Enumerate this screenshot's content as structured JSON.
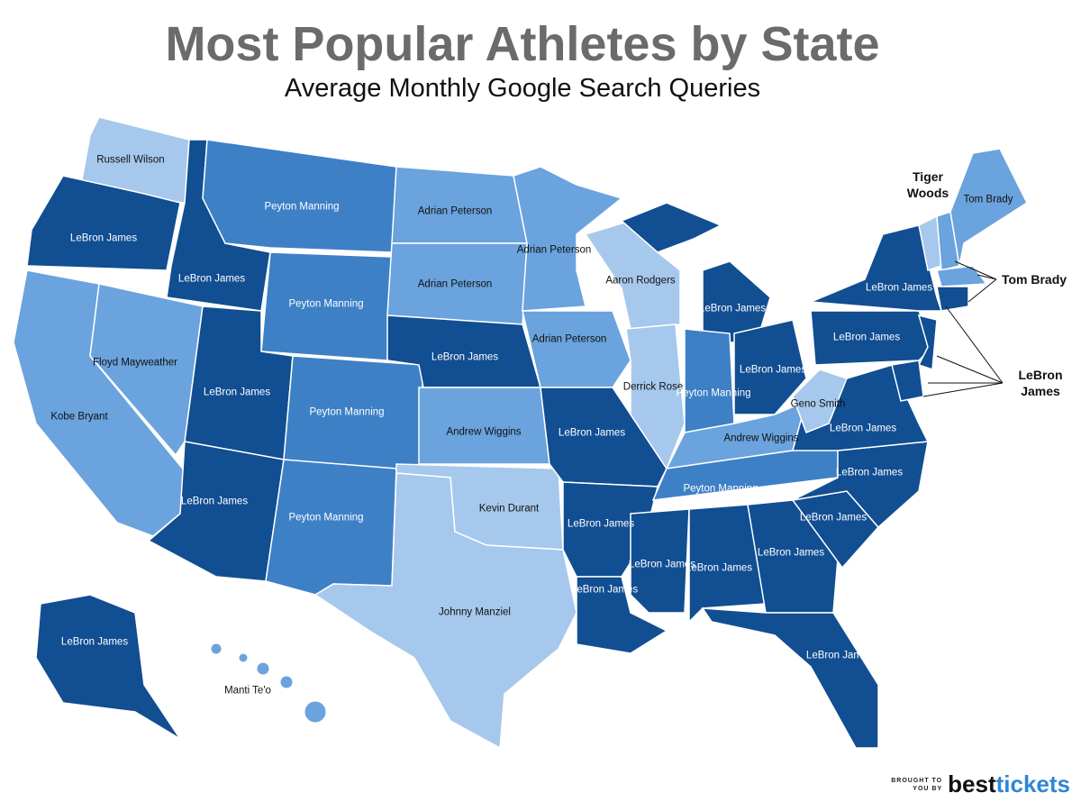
{
  "title": "Most Popular Athletes by State",
  "subtitle": "Average Monthly Google Search Queries",
  "states": [
    {
      "label": "Russell Wilson",
      "color": "#a6c8ec"
    },
    {
      "label": "LeBron James",
      "color": "#114e92"
    },
    {
      "label": "Kobe Bryant",
      "color": "#6aa3dd"
    },
    {
      "label": "Floyd Mayweather",
      "color": "#6aa3dd"
    },
    {
      "label": "LeBron James",
      "color": "#114e92"
    },
    {
      "label": "Peyton Manning",
      "color": "#3d80c6"
    },
    {
      "label": "Peyton Manning",
      "color": "#3d80c6"
    },
    {
      "label": "LeBron James",
      "color": "#114e92"
    },
    {
      "label": "LeBron James",
      "color": "#114e92"
    },
    {
      "label": "Peyton Manning",
      "color": "#3d80c6"
    },
    {
      "label": "Peyton Manning",
      "color": "#3d80c6"
    },
    {
      "label": "Adrian Peterson",
      "color": "#6aa3dd"
    },
    {
      "label": "Adrian Peterson",
      "color": "#6aa3dd"
    },
    {
      "label": "LeBron James",
      "color": "#114e92"
    },
    {
      "label": "Andrew Wiggins",
      "color": "#6aa3dd"
    },
    {
      "label": "Kevin Durant",
      "color": "#a6c8ec"
    },
    {
      "label": "Johnny Manziel",
      "color": "#a6c8ec"
    },
    {
      "label": "Adrian Peterson",
      "color": "#6aa3dd"
    },
    {
      "label": "Adrian Peterson",
      "color": "#6aa3dd"
    },
    {
      "label": "LeBron James",
      "color": "#114e92"
    },
    {
      "label": "LeBron James",
      "color": "#114e92"
    },
    {
      "label": "LeBron James",
      "color": "#114e92"
    },
    {
      "label": "Aaron Rodgers",
      "color": "#a6c8ec"
    },
    {
      "label": "Derrick Rose",
      "color": "#a6c8ec"
    },
    {
      "label": "LeBron James",
      "color": "#114e92"
    },
    {
      "color": "#114e92"
    },
    {
      "label": "Peyton Manning",
      "color": "#3d80c6"
    },
    {
      "label": "LeBron James",
      "color": "#114e92"
    },
    {
      "label": "Andrew Wiggins",
      "color": "#6aa3dd"
    },
    {
      "label": "Peyton Manning",
      "color": "#3d80c6"
    },
    {
      "label": "LeBron James",
      "color": "#114e92"
    },
    {
      "label": "LeBron James",
      "color": "#114e92"
    },
    {
      "label": "LeBron James",
      "color": "#114e92"
    },
    {
      "label": "LeBron James",
      "color": "#114e92"
    },
    {
      "label": "LeBron James",
      "color": "#114e92"
    },
    {
      "label": "LeBron James",
      "color": "#114e92"
    },
    {
      "label": "LeBron James",
      "color": "#114e92"
    },
    {
      "label": "Geno Smith",
      "color": "#a6c8ec"
    },
    {
      "label": "LeBron James",
      "color": "#114e92"
    },
    {
      "label": "LeBron James",
      "color": "#114e92"
    },
    {
      "color": "#114e92"
    },
    {
      "color": "#114e92"
    },
    {
      "color": "#a6c8ec"
    },
    {
      "color": "#6aa3dd"
    },
    {
      "label": "Tom Brady",
      "color": "#6aa3dd"
    },
    {
      "color": "#6aa3dd"
    },
    {
      "color": "#114e92"
    },
    {
      "label": "LeBron James",
      "color": "#114e92"
    },
    {
      "label": "Manti Te'o",
      "color": "#6aa3dd"
    }
  ],
  "callouts": [
    {
      "label": "Tiger Woods"
    },
    {
      "label": "Tom Brady"
    },
    {
      "label": "LeBron James"
    }
  ],
  "footer": {
    "small": "BROUGHT TO YOU BY",
    "brand_1": "best",
    "brand_2": "tickets"
  }
}
